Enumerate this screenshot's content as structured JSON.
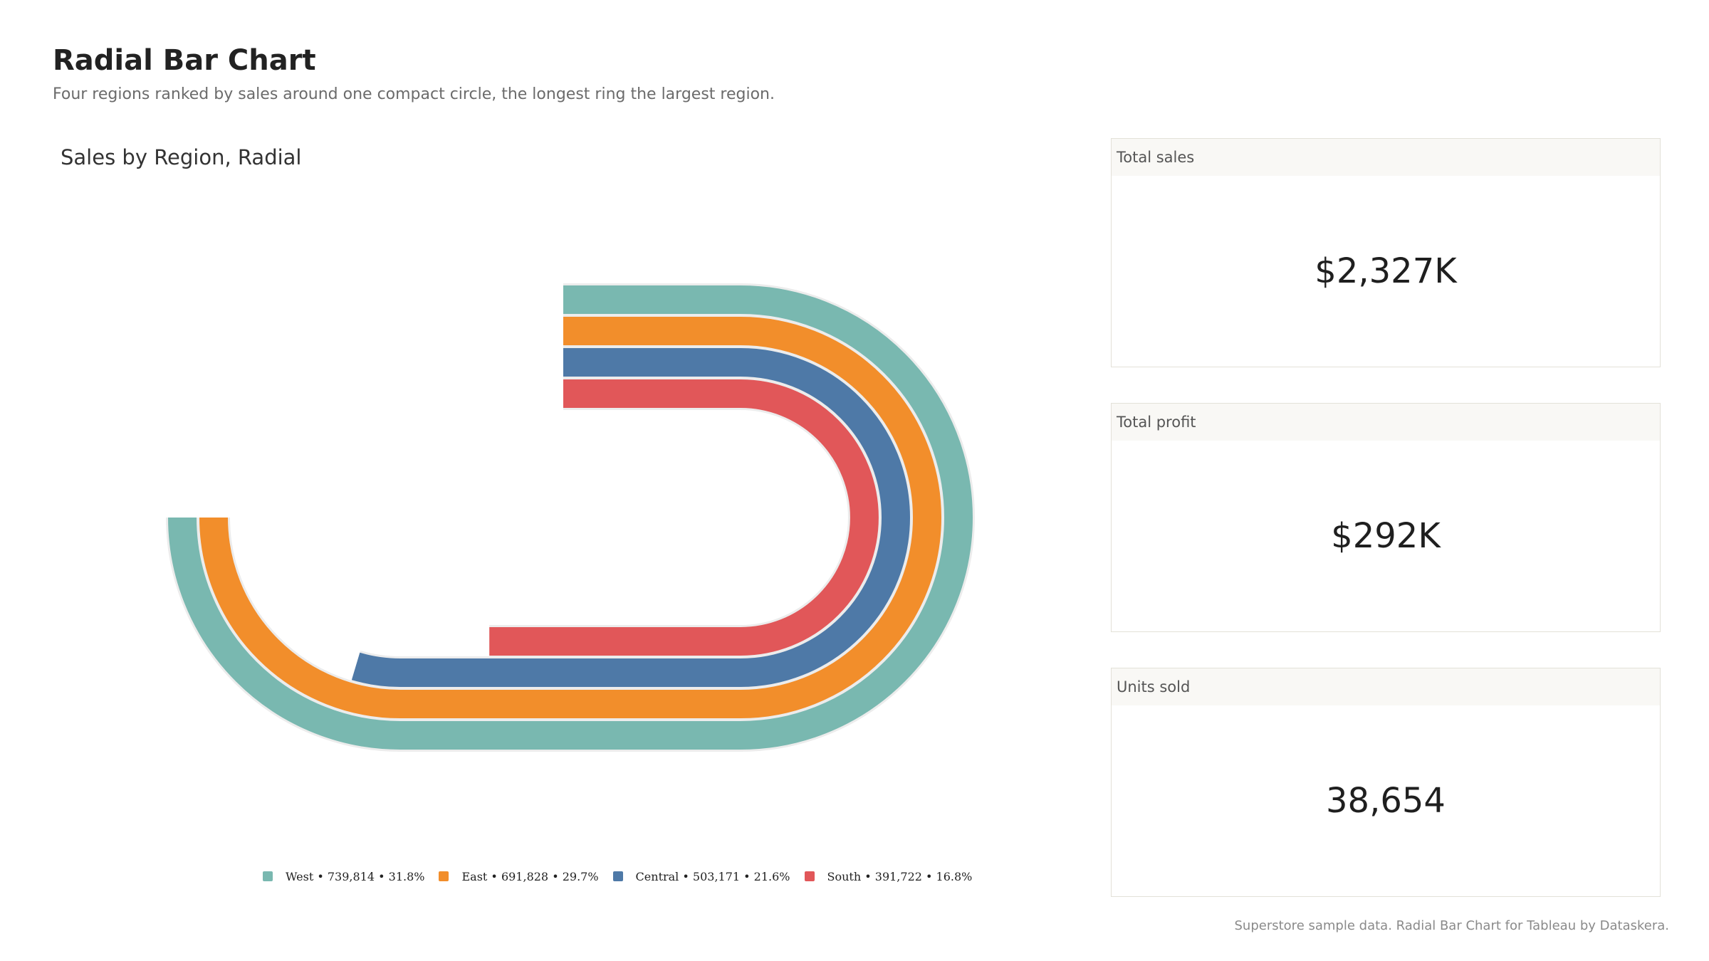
{
  "header": {
    "title": "Radial Bar Chart",
    "subtitle": "Four regions ranked by sales around one compact circle, the longest ring the largest region."
  },
  "chart_title": "Sales by Region, Radial",
  "chart_data": {
    "type": "radial-bar",
    "title": "Sales by Region, Radial",
    "categories": [
      "West",
      "East",
      "Central",
      "South"
    ],
    "values": [
      739814,
      691828,
      503171,
      391722
    ],
    "shares_pct": [
      31.8,
      29.7,
      21.6,
      16.8
    ],
    "colors": [
      "#79b8b0",
      "#f28e2b",
      "#4e79a7",
      "#e15759"
    ],
    "legend_position": "bottom-center",
    "grid": false
  },
  "legend": [
    {
      "label": "West • 739,814 • 31.8%",
      "color": "#79b8b0"
    },
    {
      "label": "East • 691,828 • 29.7%",
      "color": "#f28e2b"
    },
    {
      "label": "Central • 503,171 • 21.6%",
      "color": "#4e79a7"
    },
    {
      "label": "South • 391,722 • 16.8%",
      "color": "#e15759"
    }
  ],
  "kpis": [
    {
      "label": "Total sales",
      "value": "$2,327K"
    },
    {
      "label": "Total profit",
      "value": "$292K"
    },
    {
      "label": "Units sold",
      "value": "38,654"
    }
  ],
  "footer": "Superstore sample data. Radial Bar Chart for Tableau by Dataskera."
}
